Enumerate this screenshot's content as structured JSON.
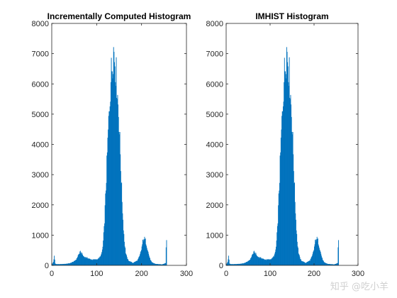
{
  "chart_data": [
    {
      "type": "bar",
      "title": "Incrementally Computed Histogram",
      "xlabel": "",
      "ylabel": "",
      "xlim": [
        0,
        300
      ],
      "ylim": [
        0,
        8000
      ],
      "xticks": [
        0,
        100,
        200,
        300
      ],
      "yticks": [
        0,
        1000,
        2000,
        3000,
        4000,
        5000,
        6000,
        7000,
        8000
      ],
      "bar_color": "#0072BD",
      "series_points": [
        [
          0,
          20
        ],
        [
          3,
          120
        ],
        [
          5,
          300
        ],
        [
          7,
          60
        ],
        [
          10,
          40
        ],
        [
          20,
          40
        ],
        [
          30,
          50
        ],
        [
          40,
          70
        ],
        [
          50,
          140
        ],
        [
          55,
          220
        ],
        [
          58,
          330
        ],
        [
          60,
          380
        ],
        [
          63,
          440
        ],
        [
          66,
          400
        ],
        [
          70,
          300
        ],
        [
          75,
          260
        ],
        [
          80,
          240
        ],
        [
          85,
          200
        ],
        [
          90,
          190
        ],
        [
          95,
          190
        ],
        [
          100,
          200
        ],
        [
          105,
          240
        ],
        [
          110,
          360
        ],
        [
          113,
          600
        ],
        [
          116,
          1200
        ],
        [
          119,
          2200
        ],
        [
          122,
          3300
        ],
        [
          125,
          4400
        ],
        [
          128,
          5300
        ],
        [
          131,
          6200
        ],
        [
          134,
          6700
        ],
        [
          137,
          7150
        ],
        [
          140,
          6800
        ],
        [
          143,
          6300
        ],
        [
          146,
          5600
        ],
        [
          149,
          4800
        ],
        [
          152,
          3700
        ],
        [
          155,
          2500
        ],
        [
          158,
          1500
        ],
        [
          161,
          800
        ],
        [
          164,
          420
        ],
        [
          167,
          250
        ],
        [
          170,
          160
        ],
        [
          180,
          80
        ],
        [
          190,
          160
        ],
        [
          195,
          300
        ],
        [
          199,
          520
        ],
        [
          202,
          780
        ],
        [
          205,
          900
        ],
        [
          208,
          820
        ],
        [
          211,
          640
        ],
        [
          215,
          380
        ],
        [
          218,
          220
        ],
        [
          222,
          100
        ],
        [
          230,
          50
        ],
        [
          245,
          30
        ],
        [
          253,
          80
        ],
        [
          254,
          600
        ],
        [
          255,
          850
        ],
        [
          256,
          0
        ]
      ]
    },
    {
      "type": "bar",
      "title": "IMHIST Histogram",
      "xlabel": "",
      "ylabel": "",
      "xlim": [
        0,
        300
      ],
      "ylim": [
        0,
        8000
      ],
      "xticks": [
        0,
        100,
        200,
        300
      ],
      "yticks": [
        0,
        1000,
        2000,
        3000,
        4000,
        5000,
        6000,
        7000,
        8000
      ],
      "bar_color": "#0072BD",
      "series_points": [
        [
          0,
          20
        ],
        [
          3,
          120
        ],
        [
          5,
          300
        ],
        [
          7,
          60
        ],
        [
          10,
          40
        ],
        [
          20,
          40
        ],
        [
          30,
          50
        ],
        [
          40,
          70
        ],
        [
          50,
          140
        ],
        [
          55,
          220
        ],
        [
          58,
          330
        ],
        [
          60,
          380
        ],
        [
          63,
          440
        ],
        [
          66,
          400
        ],
        [
          70,
          300
        ],
        [
          75,
          260
        ],
        [
          80,
          240
        ],
        [
          85,
          200
        ],
        [
          90,
          190
        ],
        [
          95,
          190
        ],
        [
          100,
          200
        ],
        [
          105,
          240
        ],
        [
          110,
          360
        ],
        [
          113,
          600
        ],
        [
          116,
          1200
        ],
        [
          119,
          2200
        ],
        [
          122,
          3300
        ],
        [
          125,
          4400
        ],
        [
          128,
          5300
        ],
        [
          131,
          6200
        ],
        [
          134,
          6700
        ],
        [
          137,
          7150
        ],
        [
          140,
          6800
        ],
        [
          143,
          6300
        ],
        [
          146,
          5600
        ],
        [
          149,
          4800
        ],
        [
          152,
          3700
        ],
        [
          155,
          2500
        ],
        [
          158,
          1500
        ],
        [
          161,
          800
        ],
        [
          164,
          420
        ],
        [
          167,
          250
        ],
        [
          170,
          160
        ],
        [
          180,
          80
        ],
        [
          190,
          160
        ],
        [
          195,
          300
        ],
        [
          199,
          520
        ],
        [
          202,
          780
        ],
        [
          205,
          900
        ],
        [
          208,
          820
        ],
        [
          211,
          640
        ],
        [
          215,
          380
        ],
        [
          218,
          220
        ],
        [
          222,
          100
        ],
        [
          230,
          50
        ],
        [
          245,
          30
        ],
        [
          253,
          80
        ],
        [
          254,
          600
        ],
        [
          255,
          850
        ],
        [
          256,
          0
        ]
      ]
    }
  ],
  "watermark": "知乎 @吃小羊"
}
